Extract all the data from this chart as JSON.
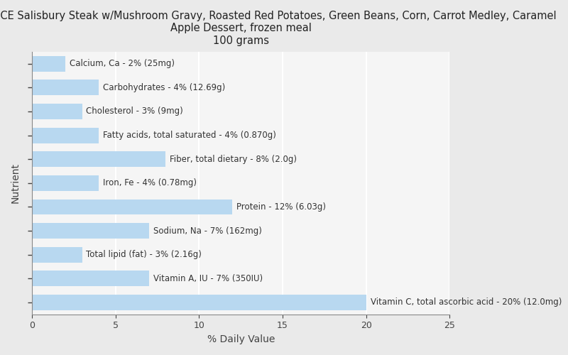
{
  "title_line1": "HEALTHY CHOICE Salisbury Steak w/Mushroom Gravy, Roasted Red Potatoes, Green Beans, Corn, Carrot Medley, Caramel",
  "title_line2": "Apple Dessert, frozen meal",
  "title_line3": "100 grams",
  "xlabel": "% Daily Value",
  "ylabel": "Nutrient",
  "xlim": [
    0,
    25
  ],
  "bar_color": "#b8d8f0",
  "background_color": "#eaeaea",
  "plot_bg_color": "#f5f5f5",
  "nutrients": [
    {
      "label": "Calcium, Ca - 2% (25mg)",
      "value": 2
    },
    {
      "label": "Carbohydrates - 4% (12.69g)",
      "value": 4
    },
    {
      "label": "Cholesterol - 3% (9mg)",
      "value": 3
    },
    {
      "label": "Fatty acids, total saturated - 4% (0.870g)",
      "value": 4
    },
    {
      "label": "Fiber, total dietary - 8% (2.0g)",
      "value": 8
    },
    {
      "label": "Iron, Fe - 4% (0.78mg)",
      "value": 4
    },
    {
      "label": "Protein - 12% (6.03g)",
      "value": 12
    },
    {
      "label": "Sodium, Na - 7% (162mg)",
      "value": 7
    },
    {
      "label": "Total lipid (fat) - 3% (2.16g)",
      "value": 3
    },
    {
      "label": "Vitamin A, IU - 7% (350IU)",
      "value": 7
    },
    {
      "label": "Vitamin C, total ascorbic acid - 20% (12.0mg)",
      "value": 20
    }
  ],
  "grid_color": "#ffffff",
  "tick_color": "#444444",
  "label_fontsize": 8.5,
  "title_fontsize": 10.5,
  "axis_label_fontsize": 10
}
